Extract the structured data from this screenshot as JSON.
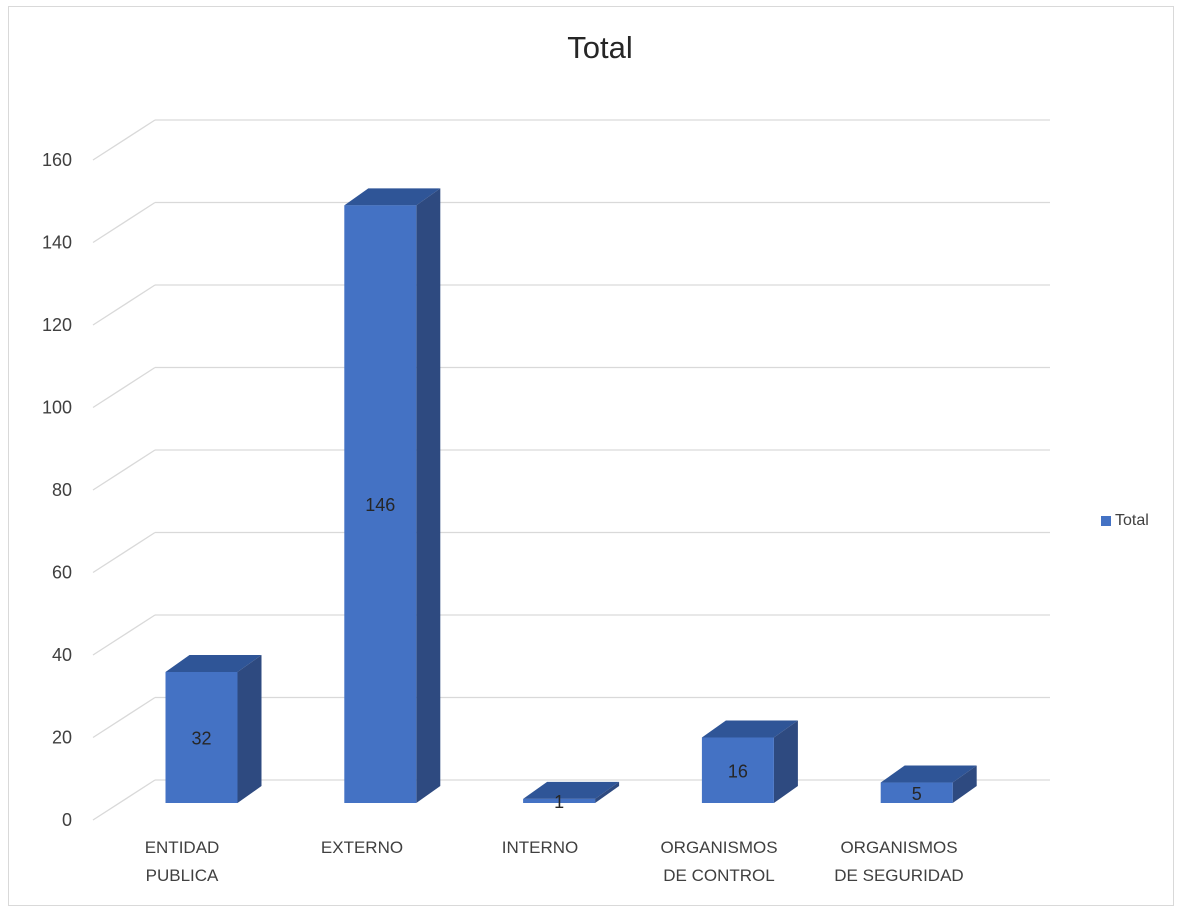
{
  "chart_data": {
    "type": "bar",
    "style": "3d-column",
    "title": "Total",
    "categories": [
      [
        "ENTIDAD",
        "PUBLICA"
      ],
      [
        "EXTERNO"
      ],
      [
        "INTERNO"
      ],
      [
        "ORGANISMOS",
        "DE CONTROL"
      ],
      [
        "ORGANISMOS",
        "DE SEGURIDAD"
      ]
    ],
    "series": [
      {
        "name": "Total",
        "values": [
          32,
          146,
          1,
          16,
          5
        ]
      }
    ],
    "ylim": [
      0,
      160
    ],
    "yticks": [
      "0",
      "20",
      "40",
      "60",
      "80",
      "100",
      "120",
      "140",
      "160"
    ],
    "grid": true,
    "legend": "right",
    "colors": {
      "front": "#4472C4",
      "top": "#2F5597",
      "side": "#2E4A80",
      "grid": "#D9D9D9"
    }
  }
}
